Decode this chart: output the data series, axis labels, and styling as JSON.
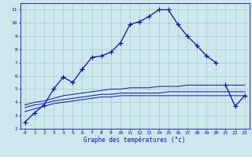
{
  "bg_color": "#cce8ec",
  "grid_color": "#aacccc",
  "line_color": "#1010aa",
  "title": "Graphe des températures (°c)",
  "xlim": [
    -0.5,
    23.5
  ],
  "ylim": [
    2,
    11.5
  ],
  "xticks": [
    0,
    1,
    2,
    3,
    4,
    5,
    6,
    7,
    8,
    9,
    10,
    11,
    12,
    13,
    14,
    15,
    16,
    17,
    18,
    19,
    20,
    21,
    22,
    23
  ],
  "yticks": [
    2,
    3,
    4,
    5,
    6,
    7,
    8,
    9,
    10,
    11
  ],
  "series": {
    "main": {
      "x": [
        0,
        1,
        2,
        3,
        4,
        5,
        6,
        7,
        8,
        9,
        10,
        11,
        12,
        13,
        14,
        15,
        16,
        17,
        18,
        19,
        20
      ],
      "y": [
        2.5,
        3.2,
        3.8,
        5.0,
        5.9,
        5.5,
        6.5,
        7.4,
        7.5,
        7.8,
        8.5,
        9.9,
        10.1,
        10.5,
        11.0,
        11.0,
        9.9,
        9.0,
        8.3,
        7.5,
        7.0
      ]
    },
    "avg_low": {
      "x": [
        0,
        1,
        2,
        3,
        4,
        5,
        6,
        7,
        8,
        9,
        10,
        11,
        12,
        13,
        14,
        15,
        16,
        17,
        18,
        19,
        20,
        21,
        22,
        23
      ],
      "y": [
        3.3,
        3.5,
        3.7,
        3.9,
        4.0,
        4.1,
        4.2,
        4.3,
        4.4,
        4.4,
        4.5,
        4.5,
        4.5,
        4.5,
        4.5,
        4.5,
        4.5,
        4.5,
        4.5,
        4.5,
        4.5,
        4.5,
        4.5,
        4.5
      ]
    },
    "avg_mid": {
      "x": [
        0,
        1,
        2,
        3,
        4,
        5,
        6,
        7,
        8,
        9,
        10,
        11,
        12,
        13,
        14,
        15,
        16,
        17,
        18,
        19,
        20,
        21,
        22,
        23
      ],
      "y": [
        3.6,
        3.8,
        3.9,
        4.1,
        4.2,
        4.3,
        4.4,
        4.5,
        4.6,
        4.6,
        4.7,
        4.7,
        4.7,
        4.7,
        4.7,
        4.8,
        4.8,
        4.8,
        4.8,
        4.8,
        4.8,
        4.8,
        4.8,
        4.8
      ]
    },
    "avg_high": {
      "x": [
        0,
        1,
        2,
        3,
        4,
        5,
        6,
        7,
        8,
        9,
        10,
        11,
        12,
        13,
        14,
        15,
        16,
        17,
        18,
        19,
        20,
        21,
        22,
        23
      ],
      "y": [
        3.8,
        4.0,
        4.1,
        4.3,
        4.5,
        4.6,
        4.7,
        4.8,
        4.9,
        5.0,
        5.0,
        5.1,
        5.1,
        5.1,
        5.2,
        5.2,
        5.2,
        5.3,
        5.3,
        5.3,
        5.3,
        5.3,
        5.3,
        5.3
      ]
    },
    "end": {
      "x": [
        21,
        22,
        23
      ],
      "y": [
        5.3,
        3.7,
        4.5
      ]
    }
  }
}
